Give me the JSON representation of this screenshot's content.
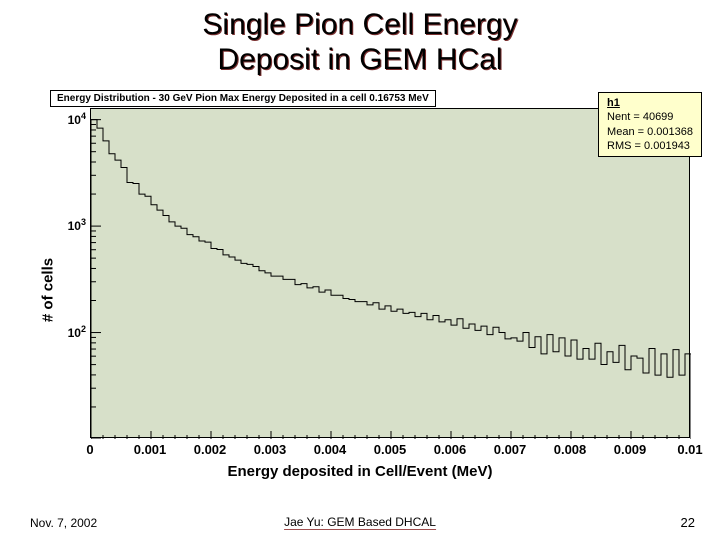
{
  "slide": {
    "title_line1": "Single Pion Cell Energy",
    "title_line2": "Deposit in GEM HCal"
  },
  "chart": {
    "type": "histogram",
    "title_box": "Energy Distribution - 30 GeV Pion Max Energy Deposited in a cell   0.16753 MeV",
    "stats": {
      "name": "h1",
      "nent_label": "Nent =",
      "nent_value": "40699",
      "mean_label": "Mean  =",
      "mean_value": "0.001368",
      "rms_label": "RMS   =",
      "rms_value": "0.001943"
    },
    "xlabel": "Energy deposited in Cell/Event (MeV)",
    "ylabel": "# of cells",
    "background_color": "#d7e0c9",
    "line_color": "#000000",
    "line_width": 1,
    "xlim": [
      0,
      0.01
    ],
    "xtick_step": 0.001,
    "xtick_labels": [
      "0",
      "0.001",
      "0.002",
      "0.003",
      "0.004",
      "0.005",
      "0.006",
      "0.007",
      "0.008",
      "0.009",
      "0.01"
    ],
    "yscale": "log",
    "ylim_log10": [
      1.0,
      4.1
    ],
    "ytick_major_log10": [
      2,
      3,
      4
    ],
    "ytick_labels": [
      "2",
      "3",
      "4"
    ],
    "nbins": 100,
    "bin_counts_log10": [
      4.0,
      3.92,
      3.8,
      3.68,
      3.62,
      3.55,
      3.41,
      3.4,
      3.3,
      3.28,
      3.2,
      3.15,
      3.1,
      3.04,
      3.0,
      2.98,
      2.92,
      2.9,
      2.86,
      2.85,
      2.79,
      2.78,
      2.73,
      2.71,
      2.68,
      2.65,
      2.64,
      2.62,
      2.58,
      2.56,
      2.53,
      2.53,
      2.5,
      2.5,
      2.45,
      2.46,
      2.42,
      2.43,
      2.38,
      2.4,
      2.35,
      2.35,
      2.32,
      2.31,
      2.29,
      2.29,
      2.26,
      2.28,
      2.22,
      2.25,
      2.2,
      2.22,
      2.18,
      2.19,
      2.15,
      2.18,
      2.12,
      2.16,
      2.1,
      2.12,
      2.07,
      2.13,
      2.04,
      2.08,
      2.02,
      2.06,
      1.98,
      2.05,
      2.0,
      1.94,
      1.95,
      1.92,
      2.0,
      1.86,
      1.96,
      1.8,
      1.98,
      1.82,
      1.95,
      1.78,
      1.93,
      1.75,
      1.85,
      1.75,
      1.9,
      1.7,
      1.82,
      1.72,
      1.88,
      1.65,
      1.78,
      1.76,
      1.62,
      1.85,
      1.6,
      1.8,
      1.58,
      1.84,
      1.6,
      1.8
    ]
  },
  "footer": {
    "date": "Nov. 7, 2002",
    "center": "Jae Yu: GEM Based DHCAL",
    "page": "22"
  }
}
